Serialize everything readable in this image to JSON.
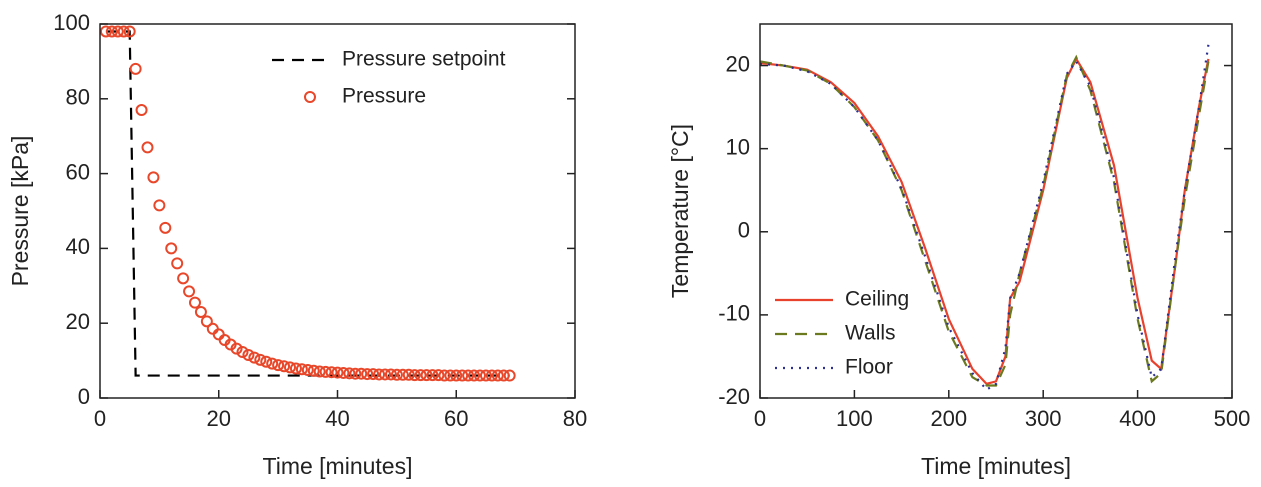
{
  "chart_data": [
    {
      "type": "line",
      "xlabel": "Time [minutes]",
      "ylabel": "Pressure [kPa]",
      "x": [
        1,
        2,
        3,
        4,
        5,
        6,
        7,
        8,
        9,
        10,
        11,
        12,
        13,
        14,
        15,
        16,
        17,
        18,
        19,
        20,
        21,
        22,
        23,
        24,
        25,
        26,
        27,
        28,
        29,
        30,
        31,
        32,
        33,
        34,
        35,
        36,
        37,
        38,
        39,
        40,
        41,
        42,
        43,
        44,
        45,
        46,
        47,
        48,
        49,
        50,
        51,
        52,
        53,
        54,
        55,
        56,
        57,
        58,
        59,
        60,
        61,
        62,
        63,
        64,
        65,
        66,
        67,
        68,
        69
      ],
      "series": [
        {
          "name": "Pressure setpoint",
          "color": "#000000",
          "dash": "dashed",
          "marker": "none",
          "values": [
            98,
            98,
            98,
            98,
            98,
            6,
            6,
            6,
            6,
            6,
            6,
            6,
            6,
            6,
            6,
            6,
            6,
            6,
            6,
            6,
            6,
            6,
            6,
            6,
            6,
            6,
            6,
            6,
            6,
            6,
            6,
            6,
            6,
            6,
            6,
            6,
            6,
            6,
            6,
            6,
            6,
            6,
            6,
            6,
            6,
            6,
            6,
            6,
            6,
            6,
            6,
            6,
            6,
            6,
            6,
            6,
            6,
            6,
            6,
            6,
            6,
            6,
            6,
            6,
            6,
            6,
            6,
            6,
            6
          ]
        },
        {
          "name": "Pressure",
          "color": "#e8472a",
          "dash": "none",
          "marker": "circle",
          "values": [
            98,
            98,
            98,
            98,
            98,
            88,
            77,
            67,
            59,
            51.5,
            45.5,
            40,
            36,
            32,
            28.5,
            25.5,
            23,
            20.5,
            18.5,
            17,
            15.5,
            14.3,
            13.2,
            12.3,
            11.5,
            10.8,
            10.2,
            9.7,
            9.2,
            8.8,
            8.5,
            8.2,
            7.9,
            7.7,
            7.5,
            7.3,
            7.1,
            7,
            6.9,
            6.8,
            6.7,
            6.6,
            6.5,
            6.5,
            6.4,
            6.4,
            6.3,
            6.3,
            6.3,
            6.2,
            6.2,
            6.2,
            6.1,
            6.1,
            6.1,
            6.1,
            6.1,
            6,
            6,
            6,
            6,
            6,
            6,
            6,
            6,
            6,
            6,
            6,
            6
          ]
        }
      ],
      "xlim": [
        0,
        80
      ],
      "xticks": [
        0,
        20,
        40,
        60,
        80
      ],
      "ylim": [
        0,
        100
      ],
      "yticks": [
        0,
        20,
        40,
        60,
        80,
        100
      ],
      "legend": "upper-right"
    },
    {
      "type": "line",
      "xlabel": "Time [minutes]",
      "ylabel": "Temperature [°C]",
      "x": [
        0,
        25,
        50,
        75,
        100,
        125,
        150,
        175,
        200,
        225,
        240,
        250,
        260,
        265,
        275,
        300,
        325,
        335,
        350,
        375,
        400,
        415,
        425,
        440,
        450,
        465,
        475
      ],
      "series": [
        {
          "name": "Ceiling",
          "color": "#e8412c",
          "dash": "solid",
          "marker": "none",
          "values": [
            20.3,
            20,
            19.5,
            18,
            15.5,
            11.5,
            6,
            -2,
            -10.5,
            -16.5,
            -18.3,
            -18,
            -15,
            -8,
            -6,
            5,
            18.5,
            20.8,
            18,
            8,
            -8,
            -15.5,
            -16.5,
            -4,
            5,
            15,
            20.8
          ]
        },
        {
          "name": "Walls",
          "color": "#6b7a1f",
          "dash": "dashed",
          "marker": "none",
          "values": [
            20.5,
            20,
            19.4,
            17.8,
            15,
            11,
            5,
            -3.5,
            -12,
            -17.5,
            -18.5,
            -18.5,
            -16,
            -10,
            -5,
            5.5,
            18.8,
            21,
            17,
            6,
            -10.5,
            -18,
            -17,
            -4,
            4,
            14,
            20.5
          ]
        },
        {
          "name": "Floor",
          "color": "#2b2f8f",
          "dash": "dotted",
          "marker": "none",
          "values": [
            20.2,
            20,
            19.3,
            17.8,
            15,
            11,
            5.2,
            -3,
            -11.5,
            -17,
            -19,
            -18.3,
            -14,
            -8,
            -5,
            6,
            19,
            20.5,
            17.5,
            6.5,
            -10,
            -17.5,
            -16.5,
            -3,
            5,
            15,
            22.5
          ]
        }
      ],
      "xlim": [
        0,
        500
      ],
      "xticks": [
        0,
        100,
        200,
        300,
        400,
        500
      ],
      "ylim": [
        -20,
        25
      ],
      "yticks": [
        -20,
        -10,
        0,
        10,
        20
      ],
      "legend": "lower-left"
    }
  ]
}
